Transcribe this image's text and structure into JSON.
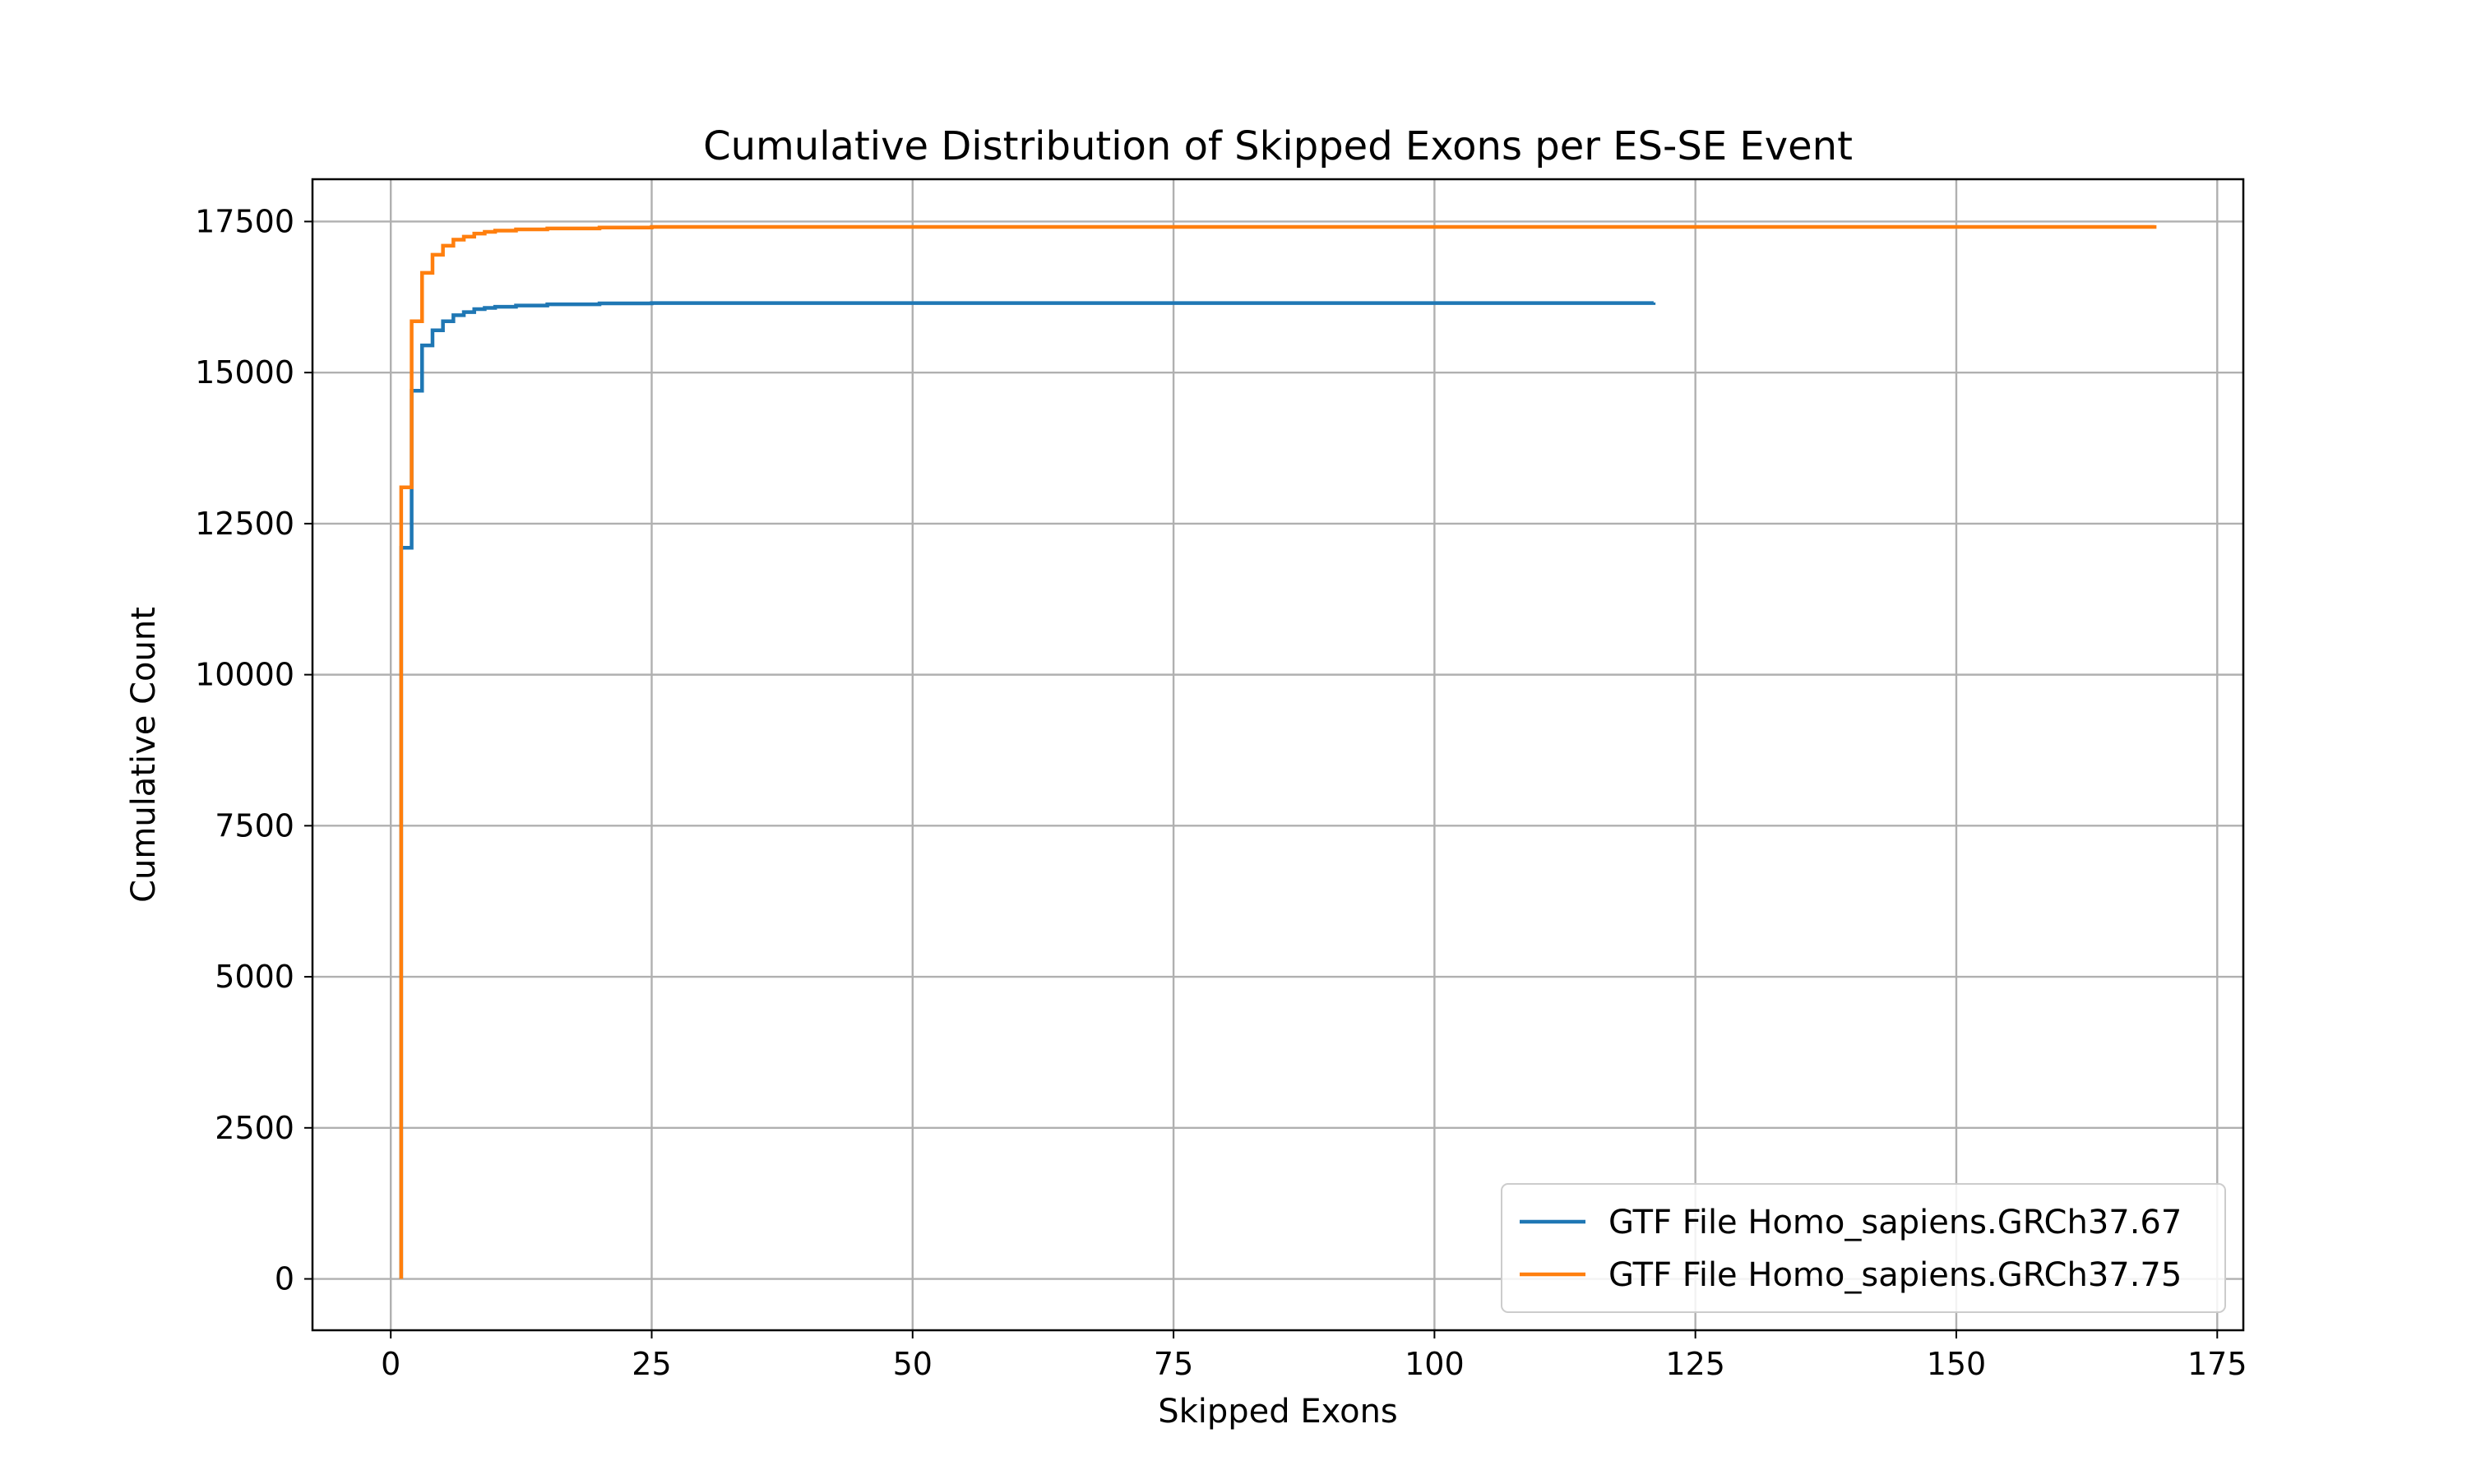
{
  "chart_data": {
    "type": "line",
    "drawstyle": "steps-post",
    "title": "Cumulative Distribution of Skipped Exons per ES-SE Event",
    "xlabel": "Skipped Exons",
    "ylabel": "Cumulative Count",
    "xlim": [
      -7.5,
      177.5
    ],
    "ylim": [
      -850,
      18200
    ],
    "xticks": [
      0,
      25,
      50,
      75,
      100,
      125,
      150,
      175
    ],
    "yticks": [
      0,
      2500,
      5000,
      7500,
      10000,
      12500,
      15000,
      17500
    ],
    "xtick_labels": [
      "0",
      "25",
      "50",
      "75",
      "100",
      "125",
      "150",
      "175"
    ],
    "ytick_labels": [
      "0",
      "2500",
      "5000",
      "7500",
      "10000",
      "12500",
      "15000",
      "17500"
    ],
    "grid": true,
    "legend_position": "lower right",
    "series": [
      {
        "name": "GTF File Homo_sapiens.GRCh37.67",
        "color": "#1f77b4",
        "x": [
          1,
          2,
          3,
          4,
          5,
          6,
          7,
          8,
          9,
          10,
          12,
          15,
          20,
          25,
          121
        ],
        "y": [
          12100,
          14700,
          15450,
          15700,
          15850,
          15950,
          16000,
          16050,
          16070,
          16090,
          16110,
          16130,
          16145,
          16150,
          16160
        ]
      },
      {
        "name": "GTF File Homo_sapiens.GRCh37.75",
        "color": "#ff7f0e",
        "x": [
          1,
          2,
          3,
          4,
          5,
          6,
          7,
          8,
          9,
          10,
          12,
          15,
          20,
          25,
          169
        ],
        "y": [
          13100,
          15850,
          16650,
          16950,
          17100,
          17200,
          17250,
          17300,
          17330,
          17350,
          17370,
          17385,
          17400,
          17410,
          17440
        ]
      }
    ]
  }
}
